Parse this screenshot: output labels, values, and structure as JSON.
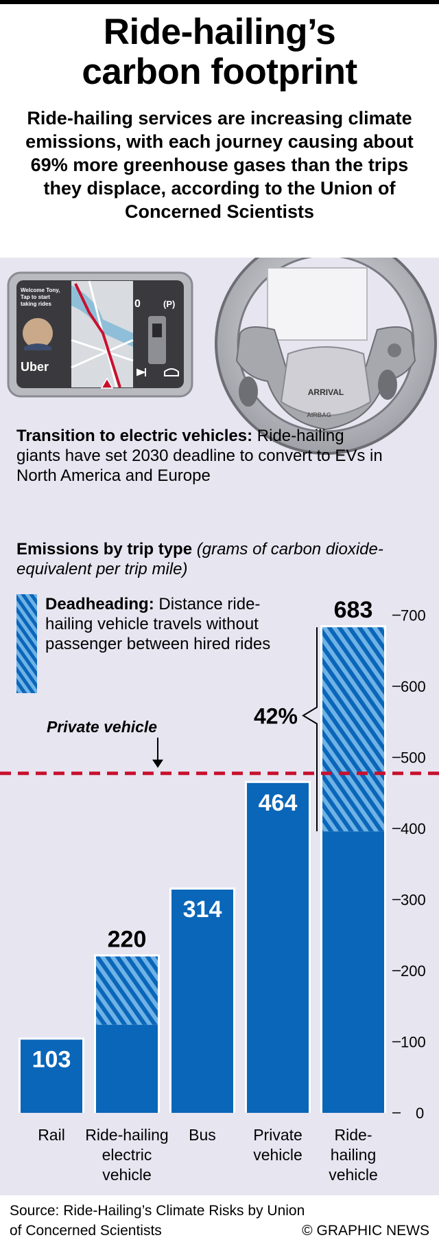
{
  "header": {
    "title_line1": "Ride-hailing’s",
    "title_line2": "carbon footprint",
    "subtitle": "Ride-hailing services are increasing climate emissions, with each journey causing about 69% more greenhouse gases than the trips they displace, according to the Union of Concerned Scientists"
  },
  "illustration": {
    "screen_welcome_line1": "Welcome Tony,",
    "screen_welcome_line2": "Tap to start",
    "screen_welcome_line3": "taking rides",
    "screen_brand": "Uber",
    "screen_digit": "0",
    "screen_parking": "(P)",
    "wheel_brand": "ARRIVAL",
    "wheel_airbag": "AIRBAG"
  },
  "ev_note": {
    "heading": "Transition to electric vehicles:",
    "body": "Ride-hailing giants have set 2030 deadline to convert to EVs in North America and Europe"
  },
  "emissions": {
    "heading": "Emissions by trip type",
    "units": "(grams of carbon dioxide-equivalent per trip mile)"
  },
  "legend": {
    "heading": "Deadheading:",
    "body": "Distance ride-hailing vehicle travels without passenger between hired rides"
  },
  "colors": {
    "bar": "#0a66b8",
    "hatch_light": "#6fb2e6",
    "reference_line": "#c8102e",
    "panel": "#e7e5f0"
  },
  "chart_data": {
    "type": "bar",
    "title": "Emissions by trip type",
    "ylabel": "(grams of carbon dioxide-equivalent per trip mile)",
    "ylim": [
      0,
      700
    ],
    "yticks": [
      0,
      100,
      200,
      300,
      400,
      500,
      600,
      700
    ],
    "ytick_labels": [
      "0",
      "100",
      "200",
      "300",
      "400",
      "500",
      "600",
      "700"
    ],
    "categories": [
      {
        "line1": "Rail",
        "line2": "",
        "line3": ""
      },
      {
        "line1": "Ride-hailing",
        "line2": "electric",
        "line3": "vehicle"
      },
      {
        "line1": "Bus",
        "line2": "",
        "line3": ""
      },
      {
        "line1": "Private",
        "line2": "vehicle",
        "line3": ""
      },
      {
        "line1": "Ride-",
        "line2": "hailing",
        "line3": "vehicle"
      }
    ],
    "series": [
      {
        "name": "",
        "values": [
          103,
          124,
          314,
          464,
          396
        ]
      },
      {
        "name": "Deadheading",
        "values": [
          0,
          96,
          0,
          0,
          287
        ]
      }
    ],
    "totals": [
      103,
      220,
      314,
      464,
      683
    ],
    "total_labels": [
      "103",
      "220",
      "314",
      "464",
      "683"
    ],
    "reference_line": {
      "value": 464,
      "label": "Private vehicle"
    },
    "annotation": {
      "text": "42%"
    },
    "grid": false
  },
  "footer": {
    "source_line1": "Source: Ride-Hailing’s Climate Risks by Union",
    "source_line2": "of Concerned Scientists",
    "credit": "© GRAPHIC NEWS"
  }
}
